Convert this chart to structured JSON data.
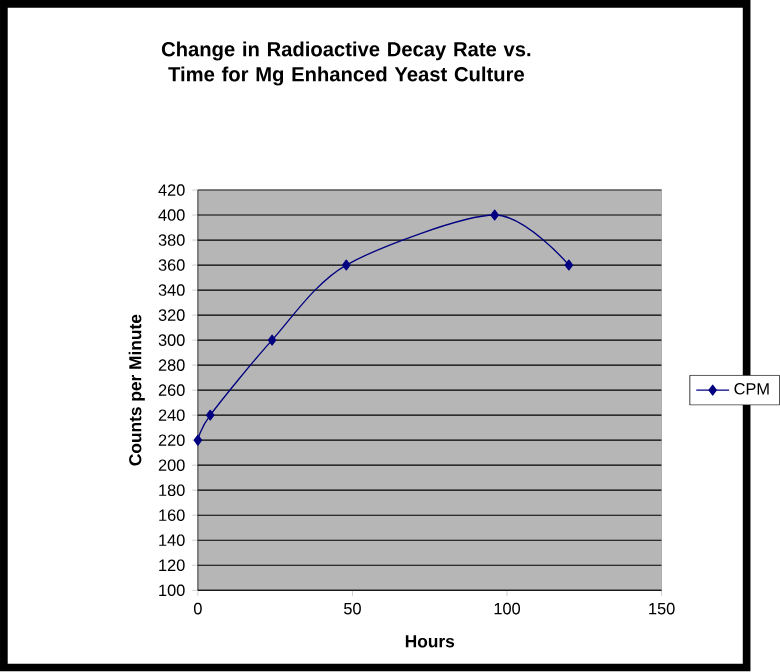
{
  "chart_data": {
    "type": "line",
    "title": "Change in Radioactive Decay Rate vs. Time for Mg Enhanced Yeast Culture",
    "xlabel": "Hours",
    "ylabel": "Counts per Minute",
    "x": [
      0,
      4,
      24,
      48,
      96,
      120
    ],
    "series": [
      {
        "name": "CPM",
        "color": "#000080",
        "values": [
          220,
          240,
          300,
          360,
          400,
          360
        ]
      }
    ],
    "xlim": [
      0,
      150
    ],
    "xticks": [
      0,
      50,
      100,
      150
    ],
    "ylim": [
      100,
      420
    ],
    "yticks": [
      100,
      120,
      140,
      160,
      180,
      200,
      220,
      240,
      260,
      280,
      300,
      320,
      340,
      360,
      380,
      400,
      420
    ],
    "grid": "y",
    "legend": "right",
    "marker": "diamond",
    "line_style": "solid"
  }
}
